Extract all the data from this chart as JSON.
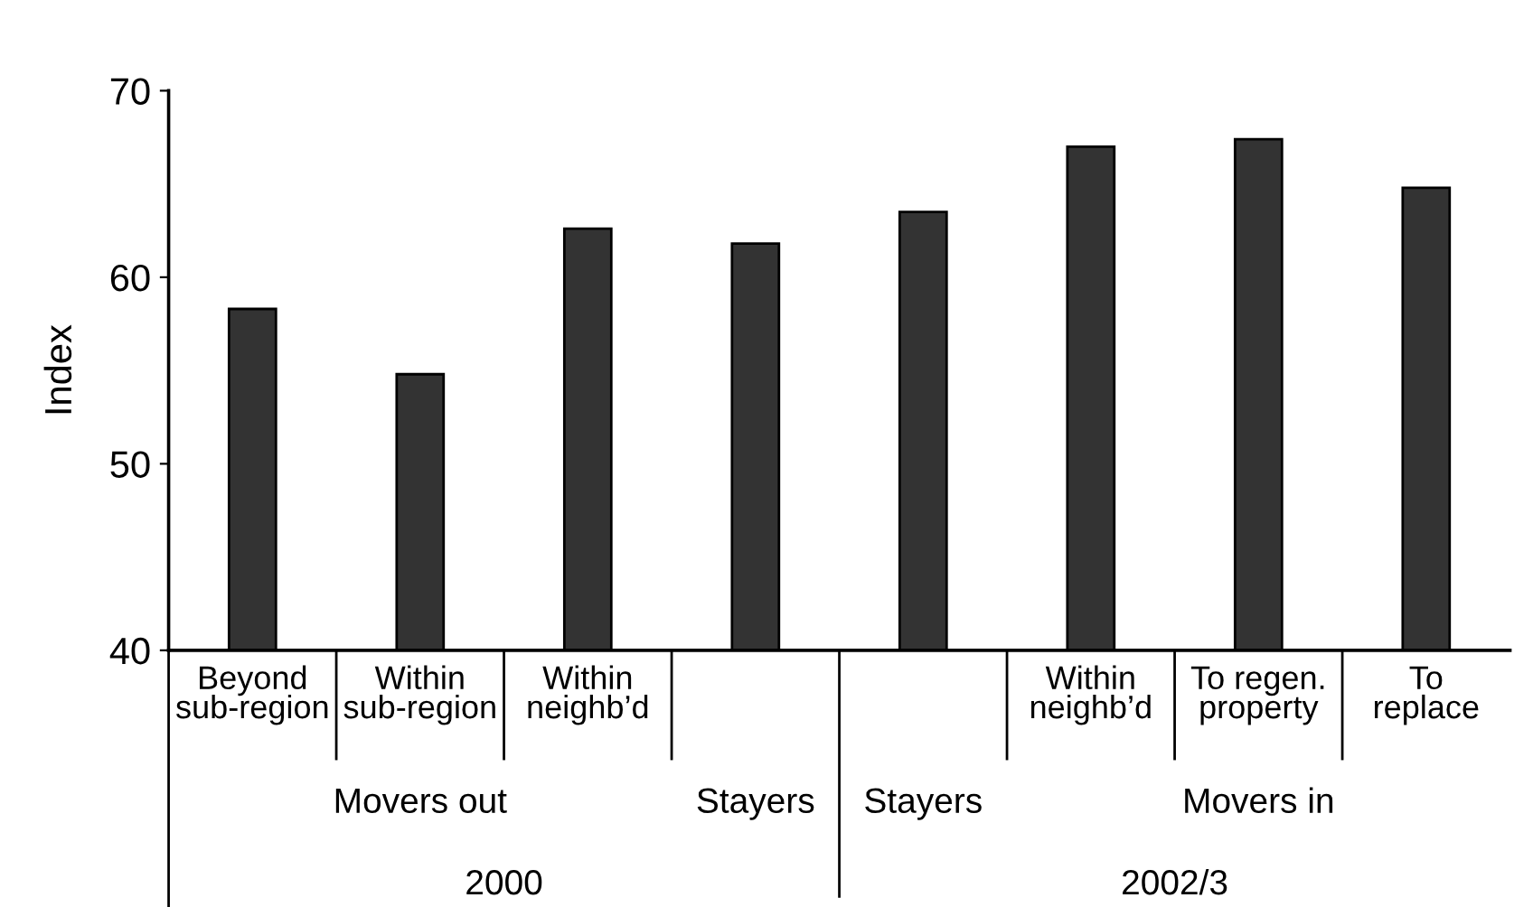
{
  "chart_data": {
    "type": "bar",
    "ylabel": "Index",
    "categories": [
      "Beyond\nsub-region",
      "Within\nsub-region",
      "Within\nneighb’d",
      null,
      null,
      "Within\nneighb’d",
      "To regen.\nproperty",
      "To\nreplace"
    ],
    "values": [
      58.3,
      54.8,
      62.6,
      61.8,
      63.5,
      67.0,
      67.4,
      64.8
    ],
    "color": "#333333",
    "ylim": [
      40,
      70
    ],
    "yticks": [
      40,
      50,
      60,
      70
    ],
    "grid": false,
    "annotations": [
      "Movers out",
      "Stayers",
      "Stayers",
      "Movers in",
      "2000",
      "2002/3"
    ]
  }
}
